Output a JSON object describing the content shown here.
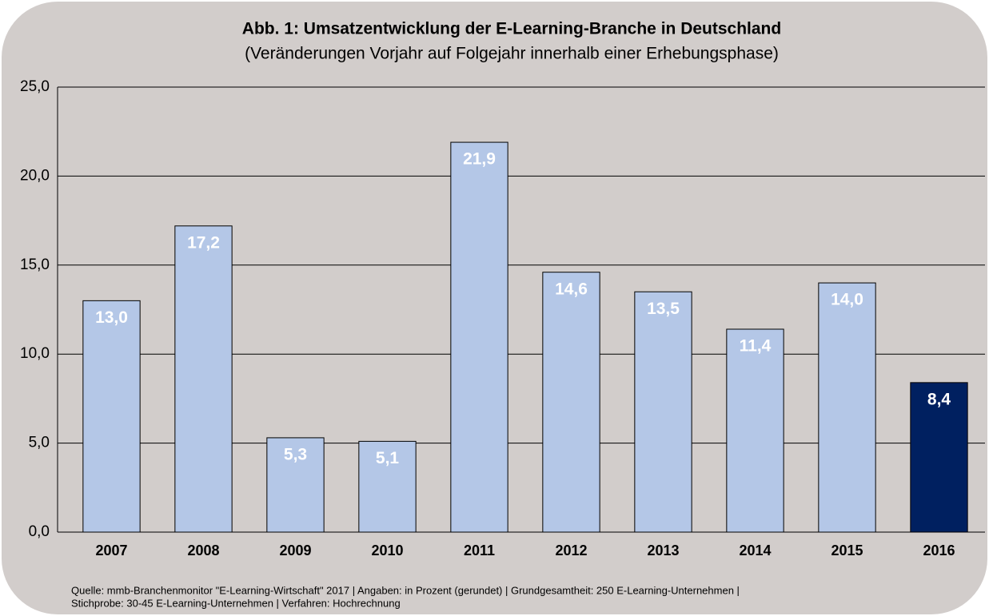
{
  "chart_data": {
    "type": "bar",
    "title": "Abb. 1: Umsatzentwicklung der E-Learning-Branche in Deutschland",
    "subtitle": "(Veränderungen Vorjahr auf Folgejahr innerhalb einer Erhebungsphase)",
    "categories": [
      "2007",
      "2008",
      "2009",
      "2010",
      "2011",
      "2012",
      "2013",
      "2014",
      "2015",
      "2016"
    ],
    "values": [
      13.0,
      17.2,
      5.3,
      5.1,
      21.9,
      14.6,
      13.5,
      11.4,
      14.0,
      8.4
    ],
    "value_labels": [
      "13,0",
      "17,2",
      "5,3",
      "5,1",
      "21,9",
      "14,6",
      "13,5",
      "11,4",
      "14,0",
      "8,4"
    ],
    "colors": [
      "#b4c7e7",
      "#b4c7e7",
      "#b4c7e7",
      "#b4c7e7",
      "#b4c7e7",
      "#b4c7e7",
      "#b4c7e7",
      "#b4c7e7",
      "#b4c7e7",
      "#002060"
    ],
    "ylim": [
      0,
      25
    ],
    "yticks": [
      {
        "value": 0,
        "label": "0,0"
      },
      {
        "value": 5,
        "label": "5,0"
      },
      {
        "value": 10,
        "label": "10,0"
      },
      {
        "value": 15,
        "label": "15,0"
      },
      {
        "value": 20,
        "label": "20,0"
      },
      {
        "value": 25,
        "label": "25,0"
      }
    ],
    "grid": true,
    "notes": [
      "Quelle: mmb-Branchenmonitor \"E-Learning-Wirtschaft\" 2017 | Angaben: in Prozent (gerundet) | Grundgesamtheit: 250 E-Learning-Unternehmen |",
      "Stichprobe: 30-45 E-Learning-Unternehmen | Verfahren: Hochrechnung"
    ]
  }
}
